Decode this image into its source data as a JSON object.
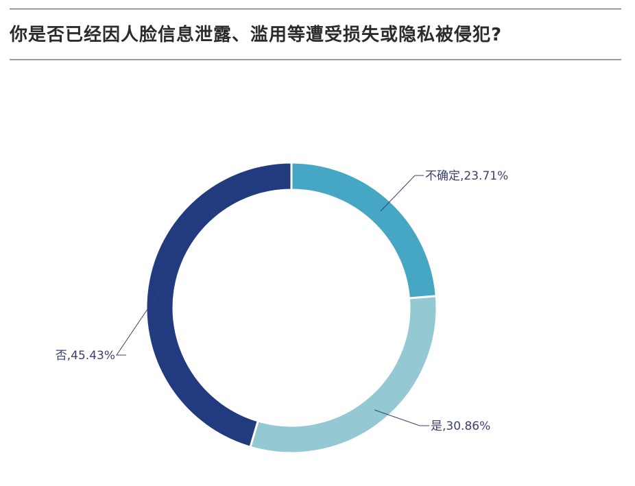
{
  "title": "你是否已经因人脸信息泄露、滥用等遭受损失或隐私被侵犯?",
  "chart_data": {
    "type": "pie",
    "variant": "donut",
    "title": "你是否已经因人脸信息泄露、滥用等遭受损失或隐私被侵犯?",
    "slices": [
      {
        "label": "不确定",
        "value": 23.71,
        "display": "不确定,23.71%",
        "color": "#45a7c3"
      },
      {
        "label": "是",
        "value": 30.86,
        "display": "是,30.86%",
        "color": "#94c9d4"
      },
      {
        "label": "否",
        "value": 45.43,
        "display": "否,45.43%",
        "color": "#223a7e"
      }
    ],
    "legend": "none"
  }
}
